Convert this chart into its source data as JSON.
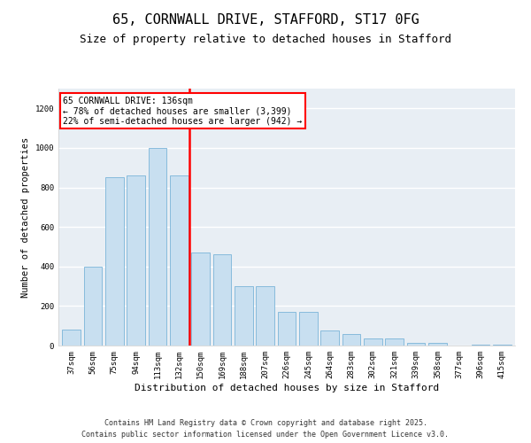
{
  "title1": "65, CORNWALL DRIVE, STAFFORD, ST17 0FG",
  "title2": "Size of property relative to detached houses in Stafford",
  "xlabel": "Distribution of detached houses by size in Stafford",
  "ylabel": "Number of detached properties",
  "categories": [
    "37sqm",
    "56sqm",
    "75sqm",
    "94sqm",
    "113sqm",
    "132sqm",
    "150sqm",
    "169sqm",
    "188sqm",
    "207sqm",
    "226sqm",
    "245sqm",
    "264sqm",
    "283sqm",
    "302sqm",
    "321sqm",
    "339sqm",
    "358sqm",
    "377sqm",
    "396sqm",
    "415sqm"
  ],
  "values": [
    80,
    400,
    850,
    860,
    1000,
    860,
    470,
    460,
    300,
    300,
    170,
    170,
    75,
    60,
    35,
    35,
    15,
    15,
    0,
    5,
    5
  ],
  "bar_color": "#c8dff0",
  "bar_edge_color": "#7ab4d8",
  "annotation_text": "65 CORNWALL DRIVE: 136sqm\n← 78% of detached houses are smaller (3,399)\n22% of semi-detached houses are larger (942) →",
  "annotation_box_color": "white",
  "annotation_box_edge": "red",
  "ylim": [
    0,
    1300
  ],
  "yticks": [
    0,
    200,
    400,
    600,
    800,
    1000,
    1200
  ],
  "background_color": "#e8eef4",
  "grid_color": "white",
  "footer1": "Contains HM Land Registry data © Crown copyright and database right 2025.",
  "footer2": "Contains public sector information licensed under the Open Government Licence v3.0.",
  "title1_fontsize": 11,
  "title2_fontsize": 9,
  "xlabel_fontsize": 8,
  "ylabel_fontsize": 7.5,
  "tick_fontsize": 6.5,
  "annotation_fontsize": 7,
  "footer_fontsize": 6
}
